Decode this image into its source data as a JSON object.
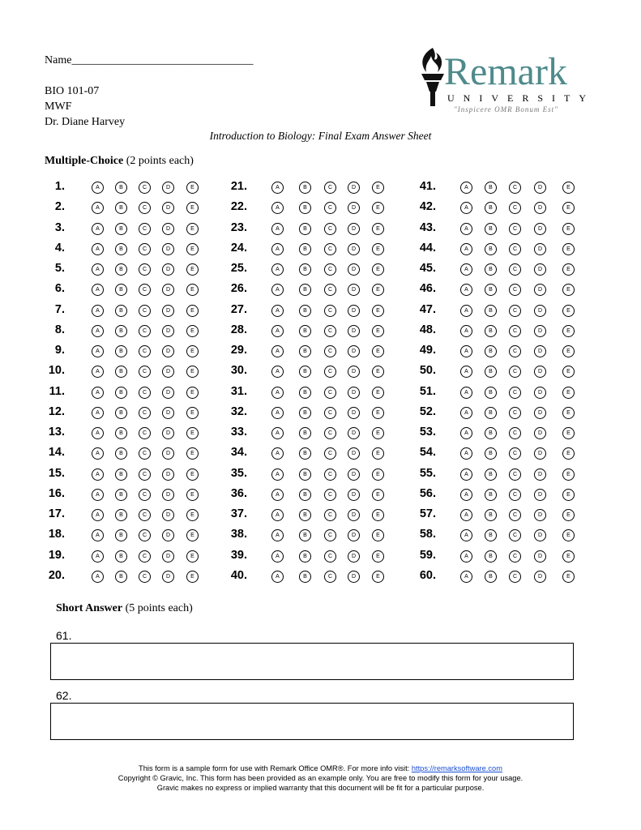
{
  "header": {
    "name_label": "Name",
    "name_line": "________________________________",
    "course": "BIO 101-07",
    "days": "MWF",
    "instructor": "Dr. Diane Harvey",
    "title": "Introduction to Biology: Final Exam Answer Sheet"
  },
  "logo": {
    "word": "Remark",
    "university": "UNIVERSITY",
    "motto": "\"Inspicere OMR Bonum Est\"",
    "color": "#4f8a8b"
  },
  "multiple_choice": {
    "heading": "Multiple-Choice",
    "points": "(2 points each)",
    "choices": [
      "A",
      "B",
      "C",
      "D",
      "E"
    ],
    "columns": [
      [
        "1.",
        "2.",
        "3.",
        "4.",
        "5.",
        "6.",
        "7.",
        "8.",
        "9.",
        "10.",
        "11.",
        "12.",
        "13.",
        "14.",
        "15.",
        "16.",
        "17.",
        "18.",
        "19.",
        "20."
      ],
      [
        "21.",
        "22.",
        "23.",
        "24.",
        "25.",
        "26.",
        "27.",
        "28.",
        "29.",
        "30.",
        "31.",
        "32.",
        "33.",
        "34.",
        "35.",
        "36.",
        "37.",
        "38.",
        "39.",
        "40."
      ],
      [
        "41.",
        "42.",
        "43.",
        "44.",
        "45.",
        "46.",
        "47.",
        "48.",
        "49.",
        "50.",
        "51.",
        "52.",
        "53.",
        "54.",
        "55.",
        "56.",
        "57.",
        "58.",
        "59.",
        "60."
      ]
    ]
  },
  "short_answer": {
    "heading": "Short Answer",
    "points": "(5 points each)",
    "questions": [
      {
        "number": "61."
      },
      {
        "number": "62."
      }
    ]
  },
  "footer": {
    "line1": "This form is a sample form for use with Remark Office OMR®. For more info visit: ",
    "link": "https://remarksoftware.com",
    "line2": "Copyright © Gravic, Inc. This form has been provided as an example only. You are free to modify this form for your usage.",
    "line3": "Gravic makes no express or implied warranty that this document will be fit for a particular purpose."
  }
}
